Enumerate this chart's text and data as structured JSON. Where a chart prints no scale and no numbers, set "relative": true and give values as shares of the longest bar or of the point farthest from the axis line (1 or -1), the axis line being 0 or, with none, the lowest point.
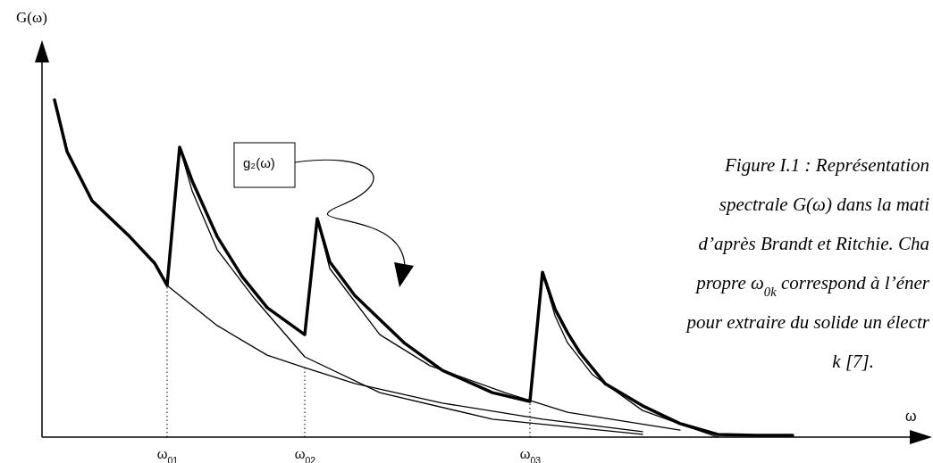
{
  "chart_data": {
    "type": "line",
    "relative": true,
    "ref_lines": [
      {
        "axis": "x",
        "value": "ω$_{01}$",
        "line_style": "dotted"
      },
      {
        "axis": "x",
        "value": "ω$_{02}$",
        "line_style": "dotted"
      },
      {
        "axis": "x",
        "value": "ω$_{03}$",
        "line_style": "dotted"
      }
    ],
    "xlabel": "ω",
    "ylabel": "G(ω)",
    "categories": [
      null,
      null,
      null,
      null,
      null,
      null,
      null,
      null,
      null,
      null,
      "ω$_{01}$",
      null,
      null,
      null,
      null,
      null,
      null,
      null,
      null,
      null,
      null,
      "ω$_{02}$",
      null,
      null,
      null,
      null,
      null,
      null,
      null,
      null,
      null,
      null,
      null,
      null,
      null,
      null,
      null,
      null,
      null,
      "ω$_{03}$",
      null,
      null,
      null,
      null,
      null,
      null,
      null,
      null,
      null,
      null,
      null,
      null,
      null,
      null,
      null,
      null,
      null,
      null,
      null,
      null,
      null,
      null,
      null,
      null,
      null,
      null,
      null,
      null,
      null,
      null,
      null
    ],
    "series": [
      {
        "color": "#000000",
        "values": [
          null,
          1,
          0.847,
          null,
          0.701,
          null,
          null,
          0.595,
          null,
          0.516,
          0.45,
          0.86,
          0.76,
          null,
          0.595,
          null,
          0.476,
          null,
          0.384,
          null,
          null,
          0.304,
          0.648,
          0.52,
          null,
          0.42,
          null,
          null,
          null,
          0.278,
          null,
          null,
          0.198,
          null,
          null,
          null,
          0.132,
          null,
          null,
          0.106,
          0.489,
          0.38,
          0.31,
          0.25,
          null,
          0.159,
          null,
          null,
          0.093,
          null,
          null,
          0.04,
          null,
          null,
          0.008,
          null,
          null,
          0.005,
          null,
          null,
          0.005,
          null,
          null,
          null,
          null,
          null,
          null,
          null,
          null,
          null,
          null
        ]
      },
      {
        "color": "#000000",
        "values": [
          null,
          1,
          0.847,
          null,
          0.701,
          null,
          null,
          0.595,
          null,
          0.516,
          0.45,
          null,
          null,
          null,
          0.331,
          null,
          null,
          null,
          0.243,
          null,
          null,
          0.206,
          null,
          null,
          null,
          0.159,
          null,
          null,
          null,
          null,
          null,
          null,
          0.101,
          null,
          null,
          null,
          null,
          null,
          null,
          null,
          0.053,
          null,
          null,
          null,
          null,
          null,
          null,
          null,
          0.016,
          null,
          null,
          null,
          null,
          null,
          null,
          null,
          null,
          null,
          null,
          null,
          null,
          null,
          null,
          null,
          null,
          null,
          null,
          null,
          null,
          null,
          null
        ]
      },
      {
        "color": "#000000",
        "values": [
          null,
          null,
          null,
          null,
          null,
          null,
          null,
          null,
          null,
          null,
          null,
          0.86,
          0.73,
          null,
          0.556,
          null,
          null,
          0.41,
          null,
          null,
          null,
          0.238,
          null,
          null,
          null,
          null,
          null,
          0.132,
          null,
          null,
          null,
          null,
          null,
          null,
          null,
          null,
          0.053,
          null,
          null,
          null,
          null,
          null,
          null,
          null,
          null,
          null,
          null,
          null,
          0.008,
          null,
          null,
          null,
          null,
          null,
          null,
          null,
          null,
          null,
          null,
          null,
          null,
          null,
          null,
          null,
          null,
          null,
          null,
          null,
          null,
          null,
          null
        ]
      },
      {
        "color": "#000000",
        "values": [
          null,
          null,
          null,
          null,
          null,
          null,
          null,
          null,
          null,
          null,
          null,
          null,
          null,
          null,
          null,
          null,
          null,
          null,
          null,
          null,
          null,
          null,
          0.648,
          0.5,
          null,
          null,
          null,
          0.304,
          null,
          null,
          null,
          0.212,
          null,
          null,
          null,
          null,
          null,
          0.132,
          null,
          null,
          null,
          null,
          0.074,
          null,
          null,
          null,
          null,
          null,
          null,
          null,
          null,
          0.021,
          null,
          null,
          null,
          null,
          null,
          null,
          null,
          null,
          null,
          null,
          null,
          null,
          null,
          null,
          null,
          null,
          null,
          null,
          null
        ]
      },
      {
        "color": "#000000",
        "values": [
          null,
          null,
          null,
          null,
          null,
          null,
          null,
          null,
          null,
          null,
          null,
          null,
          null,
          null,
          null,
          null,
          null,
          null,
          null,
          null,
          null,
          null,
          null,
          null,
          null,
          null,
          null,
          null,
          null,
          null,
          null,
          null,
          null,
          null,
          null,
          null,
          null,
          null,
          null,
          null,
          0.489,
          0.36,
          0.28,
          null,
          0.185,
          null,
          null,
          null,
          0.079,
          null,
          null,
          null,
          0.026,
          null,
          0,
          null,
          null,
          null,
          null,
          null,
          null,
          null,
          null,
          null,
          null,
          null,
          null,
          null,
          null,
          null,
          null
        ]
      }
    ],
    "annotations": [
      "g₂(ω)",
      "Figure I.1 : Représentation",
      "spectrale  G(ω) dans la mati",
      "d’après Brandt et Ritchie. Cha",
      "propre ω$_{0k}$ correspond à l’éner",
      "pour extraire du solide un électr",
      "k [7]."
    ]
  }
}
